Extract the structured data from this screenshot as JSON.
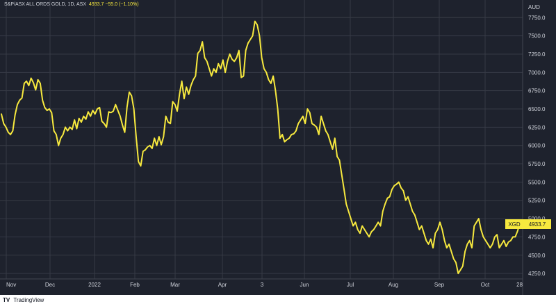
{
  "header": {
    "symbol": "S&P/ASX ALL ORDS GOLD, 1D, ASX",
    "values": "4933.7 −55.0 (−1.10%)"
  },
  "price_tag": {
    "ticker": "XGD",
    "price": "4933.7"
  },
  "footer": {
    "logo": "TV",
    "brand": "TradingView"
  },
  "colors": {
    "background": "#1e222d",
    "grid": "#363a45",
    "line": "#f7e93e",
    "text": "#d1d4dc",
    "tag_bg": "#f7e93e"
  },
  "chart_data": {
    "type": "line",
    "y_axis_unit": "AUD",
    "ylim": [
      4175,
      7990
    ],
    "y_ticks": [
      "4250.0",
      "4500.0",
      "4750.0",
      "5000.0",
      "5250.0",
      "5500.0",
      "5750.0",
      "6000.0",
      "6250.0",
      "6500.0",
      "6750.0",
      "7000.0",
      "7250.0",
      "7500.0",
      "7750.0"
    ],
    "x_ticks": [
      "Nov",
      "Dec",
      "2022",
      "Feb",
      "Mar",
      "Apr",
      "3",
      "Jun",
      "Jul",
      "Aug",
      "Sep",
      "Oct",
      "28"
    ],
    "grid": true,
    "series": [
      {
        "name": "XGD",
        "values": [
          6430,
          6300,
          6250,
          6180,
          6150,
          6200,
          6420,
          6560,
          6620,
          6650,
          6850,
          6880,
          6820,
          6920,
          6860,
          6760,
          6900,
          6850,
          6620,
          6520,
          6480,
          6500,
          6450,
          6200,
          6150,
          6000,
          6100,
          6150,
          6250,
          6200,
          6250,
          6220,
          6350,
          6230,
          6370,
          6320,
          6400,
          6360,
          6460,
          6400,
          6480,
          6430,
          6500,
          6520,
          6330,
          6300,
          6250,
          6460,
          6450,
          6470,
          6560,
          6480,
          6400,
          6280,
          6180,
          6520,
          6730,
          6680,
          6500,
          6120,
          5780,
          5720,
          5920,
          5940,
          5980,
          6000,
          5960,
          6100,
          6000,
          6120,
          6010,
          6120,
          6400,
          6320,
          6300,
          6600,
          6560,
          6470,
          6700,
          6880,
          6640,
          6800,
          6700,
          6820,
          6900,
          6950,
          7260,
          7300,
          7420,
          7200,
          7150,
          7050,
          6950,
          7050,
          7000,
          7120,
          7050,
          7170,
          7000,
          7150,
          7250,
          7180,
          7150,
          7200,
          7300,
          6930,
          6950,
          7300,
          7400,
          7450,
          7500,
          7700,
          7650,
          7500,
          7200,
          7050,
          7000,
          6900,
          6850,
          6950,
          6750,
          6500,
          6100,
          6150,
          6050,
          6080,
          6100,
          6150,
          6160,
          6200,
          6300,
          6350,
          6400,
          6300,
          6500,
          6450,
          6300,
          6280,
          6250,
          6150,
          6400,
          6300,
          6200,
          6150,
          6050,
          5950,
          6100,
          5850,
          5800,
          5600,
          5400,
          5200,
          5100,
          5000,
          4900,
          4950,
          4850,
          4800,
          4900,
          4850,
          4800,
          4750,
          4820,
          4850,
          4900,
          4950,
          4900,
          5100,
          5200,
          5280,
          5300,
          5400,
          5450,
          5470,
          5500,
          5420,
          5380,
          5250,
          5300,
          5200,
          5100,
          5050,
          4950,
          4850,
          4900,
          4800,
          4700,
          4650,
          4720,
          4600,
          4800,
          4850,
          4950,
          4850,
          4700,
          4600,
          4650,
          4550,
          4450,
          4400,
          4250,
          4300,
          4350,
          4550,
          4650,
          4700,
          4600,
          4900,
          4950,
          5000,
          4850,
          4750,
          4700,
          4650,
          4600,
          4650,
          4750,
          4780,
          4600,
          4650,
          4700,
          4620,
          4680,
          4700,
          4750,
          4750,
          4830,
          4934
        ]
      }
    ]
  }
}
